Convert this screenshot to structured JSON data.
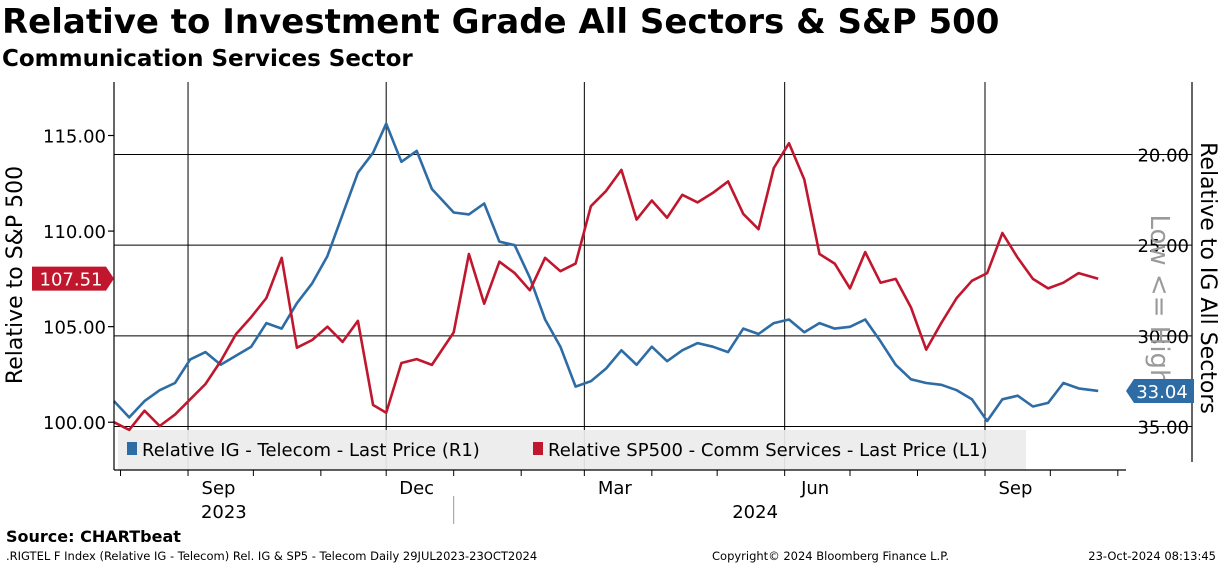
{
  "header": {
    "title": "Relative to Investment Grade All Sectors & S&P 500",
    "subtitle": "Communication Services Sector"
  },
  "footer": {
    "source": "Source: CHARTbeat",
    "index_line": ".RIGTEL F Index (Relative IG - Telecom) Rel. IG & SP5 - Telecom  Daily 29JUL2023-23OCT2024",
    "copyright": "Copyright© 2024 Bloomberg Finance L.P.",
    "timestamp": "23-Oct-2024 08:13:45"
  },
  "colors": {
    "ig_series": "#2e6ca5",
    "sp500_series": "#c0172e",
    "grid": "#000000"
  },
  "chart_data": {
    "type": "line",
    "x_range": [
      "2023-07-29",
      "2024-10-23"
    ],
    "x_ticks": [
      {
        "date": "2023-09-15",
        "label": "Sep"
      },
      {
        "date": "2023-12-15",
        "label": "Dec"
      },
      {
        "date": "2024-03-15",
        "label": "Mar"
      },
      {
        "date": "2024-06-15",
        "label": "Jun"
      },
      {
        "date": "2024-09-15",
        "label": "Sep"
      }
    ],
    "x_gridlines": [
      "2023-09-01",
      "2023-12-01",
      "2024-03-01",
      "2024-06-01",
      "2024-09-01"
    ],
    "year_labels": [
      {
        "date": "2023-10-15",
        "label": "2023"
      },
      {
        "date": "2024-06-15",
        "label": "2024"
      }
    ],
    "year_divider": "2024-01-01",
    "left_axis": {
      "label": "Relative to S&P 500",
      "range": [
        97.5,
        117.8
      ],
      "ticks": [
        100.0,
        105.0,
        110.0,
        115.0
      ],
      "tick_labels": [
        "100.00",
        "105.00",
        "110.00",
        "115.00"
      ],
      "last_value": 107.51,
      "last_label": "107.51"
    },
    "right_axis": {
      "label": "Relative to IG All Sectors",
      "secondary_label": "Low <= High",
      "inverted": true,
      "range": [
        37.4,
        16.0
      ],
      "ticks": [
        20.0,
        25.0,
        30.0,
        35.0
      ],
      "tick_labels": [
        "20.00",
        "25.00",
        "30.00",
        "35.00"
      ],
      "last_value": 33.04,
      "last_label": "33.04"
    },
    "legend": {
      "placement": "bottom-left",
      "entries": [
        {
          "label": "Relative IG - Telecom - Last Price (R1)",
          "series": "ig"
        },
        {
          "label": "Relative SP500 - Comm Services - Last Price (L1)",
          "series": "sp500"
        }
      ]
    },
    "series": [
      {
        "key": "ig",
        "name": "Relative IG - Telecom - Last Price (R1)",
        "axis": "right",
        "points": [
          [
            "2023-07-29",
            33.6
          ],
          [
            "2023-08-05",
            34.5
          ],
          [
            "2023-08-12",
            33.6
          ],
          [
            "2023-08-19",
            33.0
          ],
          [
            "2023-08-26",
            32.6
          ],
          [
            "2023-09-02",
            31.3
          ],
          [
            "2023-09-09",
            30.9
          ],
          [
            "2023-09-16",
            31.6
          ],
          [
            "2023-09-23",
            31.1
          ],
          [
            "2023-09-30",
            30.6
          ],
          [
            "2023-10-07",
            29.3
          ],
          [
            "2023-10-14",
            29.6
          ],
          [
            "2023-10-21",
            28.2
          ],
          [
            "2023-10-28",
            27.1
          ],
          [
            "2023-11-04",
            25.6
          ],
          [
            "2023-11-11",
            23.3
          ],
          [
            "2023-11-18",
            21.0
          ],
          [
            "2023-11-25",
            19.9
          ],
          [
            "2023-12-01",
            18.3
          ],
          [
            "2023-12-08",
            20.4
          ],
          [
            "2023-12-15",
            19.8
          ],
          [
            "2023-12-22",
            21.9
          ],
          [
            "2024-01-01",
            23.2
          ],
          [
            "2024-01-08",
            23.3
          ],
          [
            "2024-01-15",
            22.7
          ],
          [
            "2024-01-22",
            24.8
          ],
          [
            "2024-01-29",
            25.0
          ],
          [
            "2024-02-05",
            26.8
          ],
          [
            "2024-02-12",
            29.1
          ],
          [
            "2024-02-19",
            30.6
          ],
          [
            "2024-02-26",
            32.8
          ],
          [
            "2024-03-04",
            32.5
          ],
          [
            "2024-03-11",
            31.8
          ],
          [
            "2024-03-18",
            30.8
          ],
          [
            "2024-03-25",
            31.6
          ],
          [
            "2024-04-01",
            30.6
          ],
          [
            "2024-04-08",
            31.4
          ],
          [
            "2024-04-15",
            30.8
          ],
          [
            "2024-04-22",
            30.4
          ],
          [
            "2024-04-29",
            30.6
          ],
          [
            "2024-05-06",
            30.9
          ],
          [
            "2024-05-13",
            29.6
          ],
          [
            "2024-05-20",
            29.9
          ],
          [
            "2024-05-27",
            29.3
          ],
          [
            "2024-06-03",
            29.1
          ],
          [
            "2024-06-10",
            29.8
          ],
          [
            "2024-06-17",
            29.3
          ],
          [
            "2024-06-24",
            29.6
          ],
          [
            "2024-07-01",
            29.5
          ],
          [
            "2024-07-08",
            29.1
          ],
          [
            "2024-07-15",
            30.3
          ],
          [
            "2024-07-22",
            31.6
          ],
          [
            "2024-07-29",
            32.4
          ],
          [
            "2024-08-05",
            32.6
          ],
          [
            "2024-08-12",
            32.7
          ],
          [
            "2024-08-19",
            33.0
          ],
          [
            "2024-08-26",
            33.5
          ],
          [
            "2024-09-02",
            34.7
          ],
          [
            "2024-09-09",
            33.5
          ],
          [
            "2024-09-16",
            33.3
          ],
          [
            "2024-09-23",
            33.9
          ],
          [
            "2024-09-30",
            33.7
          ],
          [
            "2024-10-07",
            32.6
          ],
          [
            "2024-10-14",
            32.9
          ],
          [
            "2024-10-23",
            33.04
          ]
        ]
      },
      {
        "key": "sp500",
        "name": "Relative SP500 - Comm Services - Last Price (L1)",
        "axis": "left",
        "points": [
          [
            "2023-07-29",
            100.0
          ],
          [
            "2023-08-05",
            99.6
          ],
          [
            "2023-08-12",
            100.6
          ],
          [
            "2023-08-19",
            99.8
          ],
          [
            "2023-08-26",
            100.4
          ],
          [
            "2023-09-02",
            101.2
          ],
          [
            "2023-09-09",
            102.0
          ],
          [
            "2023-09-16",
            103.2
          ],
          [
            "2023-09-23",
            104.6
          ],
          [
            "2023-09-30",
            105.5
          ],
          [
            "2023-10-07",
            106.5
          ],
          [
            "2023-10-14",
            108.6
          ],
          [
            "2023-10-21",
            103.9
          ],
          [
            "2023-10-28",
            104.3
          ],
          [
            "2023-11-04",
            105.0
          ],
          [
            "2023-11-11",
            104.2
          ],
          [
            "2023-11-18",
            105.3
          ],
          [
            "2023-11-25",
            100.9
          ],
          [
            "2023-12-01",
            100.5
          ],
          [
            "2023-12-08",
            103.1
          ],
          [
            "2023-12-15",
            103.3
          ],
          [
            "2023-12-22",
            103.0
          ],
          [
            "2024-01-01",
            104.7
          ],
          [
            "2024-01-08",
            108.8
          ],
          [
            "2024-01-15",
            106.2
          ],
          [
            "2024-01-22",
            108.4
          ],
          [
            "2024-01-29",
            107.8
          ],
          [
            "2024-02-05",
            106.9
          ],
          [
            "2024-02-12",
            108.6
          ],
          [
            "2024-02-19",
            107.9
          ],
          [
            "2024-02-26",
            108.3
          ],
          [
            "2024-03-04",
            111.3
          ],
          [
            "2024-03-11",
            112.1
          ],
          [
            "2024-03-18",
            113.2
          ],
          [
            "2024-03-25",
            110.6
          ],
          [
            "2024-04-01",
            111.6
          ],
          [
            "2024-04-08",
            110.7
          ],
          [
            "2024-04-15",
            111.9
          ],
          [
            "2024-04-22",
            111.5
          ],
          [
            "2024-04-29",
            112.0
          ],
          [
            "2024-05-06",
            112.6
          ],
          [
            "2024-05-13",
            110.9
          ],
          [
            "2024-05-20",
            110.1
          ],
          [
            "2024-05-27",
            113.3
          ],
          [
            "2024-06-03",
            114.6
          ],
          [
            "2024-06-10",
            112.7
          ],
          [
            "2024-06-17",
            108.8
          ],
          [
            "2024-06-24",
            108.3
          ],
          [
            "2024-07-01",
            107.0
          ],
          [
            "2024-07-08",
            108.9
          ],
          [
            "2024-07-15",
            107.3
          ],
          [
            "2024-07-22",
            107.5
          ],
          [
            "2024-07-29",
            106.0
          ],
          [
            "2024-08-05",
            103.8
          ],
          [
            "2024-08-12",
            105.2
          ],
          [
            "2024-08-19",
            106.5
          ],
          [
            "2024-08-26",
            107.4
          ],
          [
            "2024-09-02",
            107.8
          ],
          [
            "2024-09-09",
            109.9
          ],
          [
            "2024-09-16",
            108.6
          ],
          [
            "2024-09-23",
            107.5
          ],
          [
            "2024-09-30",
            107.0
          ],
          [
            "2024-10-07",
            107.3
          ],
          [
            "2024-10-14",
            107.8
          ],
          [
            "2024-10-23",
            107.51
          ]
        ]
      }
    ]
  }
}
